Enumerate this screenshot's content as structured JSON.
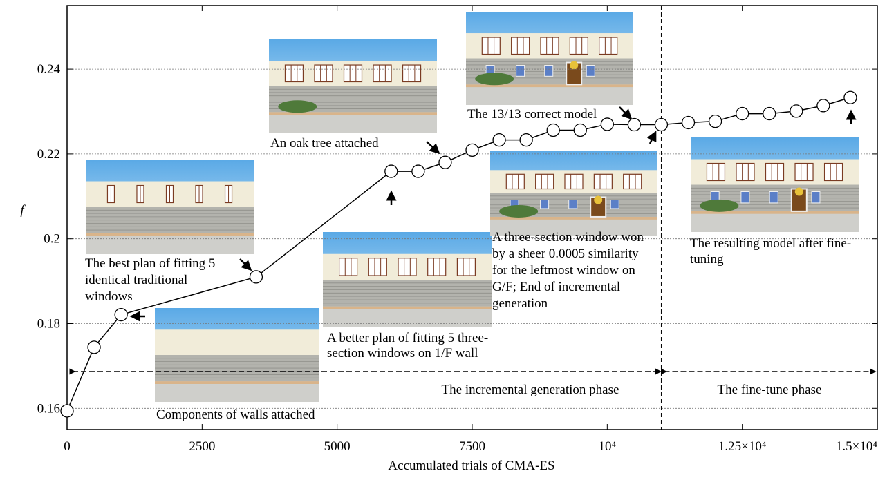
{
  "chart_data": {
    "type": "line",
    "x_label": "Accumulated trials of CMA-ES",
    "y_label": "f",
    "x": [
      0,
      500,
      1000,
      3500,
      6000,
      6500,
      7000,
      7500,
      8000,
      8500,
      9000,
      9500,
      10000,
      10500,
      11000,
      11500,
      12000,
      12500,
      13000,
      13500,
      14000,
      14500
    ],
    "values": [
      0.1594,
      0.1744,
      0.1821,
      0.191,
      0.2159,
      0.2159,
      0.218,
      0.2209,
      0.2233,
      0.2233,
      0.2256,
      0.2256,
      0.227,
      0.2269,
      0.2269,
      0.2274,
      0.2277,
      0.2295,
      0.2295,
      0.2301,
      0.2314,
      0.2333
    ],
    "color": "#000000",
    "xlim": [
      0,
      15000
    ],
    "ylim": [
      0.155,
      0.255
    ],
    "xticks": [
      0,
      2500,
      5000,
      7500,
      {
        "value": 10000,
        "label": "10⁴"
      },
      {
        "value": 12500,
        "label": "1.25×10⁴"
      },
      {
        "value": 15000,
        "label": "1.5×10⁴"
      }
    ],
    "yticks": [
      0.16,
      0.18,
      {
        "value": 0.2,
        "label": "0.2"
      },
      0.22,
      0.24
    ],
    "grid": true,
    "vlines": [
      11000
    ],
    "phases": [
      "The incremental generation phase",
      "The fine-tune phase"
    ],
    "annotations": [
      {
        "lines": [
          "The best plan of fitting 5",
          "identical traditional",
          "windows"
        ]
      },
      {
        "lines": [
          "Components of walls attached"
        ]
      },
      {
        "lines": [
          "A better plan of fitting 5 three-",
          "section windows on 1/F wall"
        ]
      },
      {
        "lines": [
          "An oak tree attached"
        ]
      },
      {
        "lines": [
          "The 13/13 correct model"
        ]
      },
      {
        "lines": [
          "A three-section window won",
          "by a sheer 0.0005 similarity",
          "for the leftmost window on",
          "G/F; End of incremental",
          "generation"
        ]
      },
      {
        "lines": [
          "The resulting model after fine-",
          "tuning"
        ]
      }
    ]
  }
}
